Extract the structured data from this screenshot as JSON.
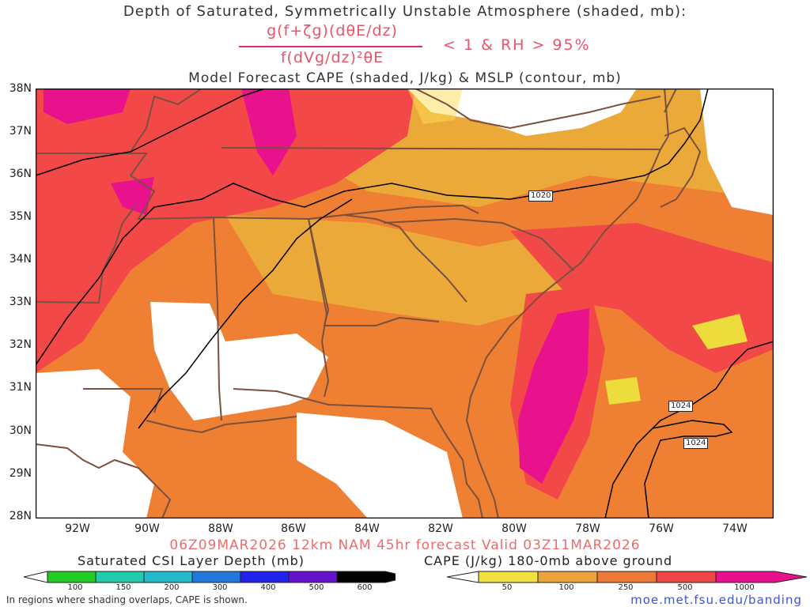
{
  "title_line1": "Depth of Saturated, Symmetrically Unstable Atmosphere (shaded, mb):",
  "formula": {
    "numerator": "g(f+ζg)(dθE/dz)",
    "denominator": "f(dVg/dz)²θE",
    "condition": "< 1 & RH > 95%"
  },
  "title_line3": "Model Forecast CAPE (shaded, J/kg) & MSLP (contour, mb)",
  "lat_labels": [
    "38N",
    "37N",
    "36N",
    "35N",
    "34N",
    "33N",
    "32N",
    "31N",
    "30N",
    "29N",
    "28N"
  ],
  "lon_labels": [
    "92W",
    "90W",
    "88W",
    "86W",
    "84W",
    "82W",
    "80W",
    "78W",
    "76W",
    "74W"
  ],
  "contour_labels": [
    "1020",
    "1024",
    "1024"
  ],
  "run_info": "06Z09MAR2026 12km NAM 45hr forecast Valid 03Z11MAR2026",
  "legend_csi": {
    "label": "Saturated CSI Layer Depth (mb)",
    "ticks": [
      "100",
      "150",
      "200",
      "300",
      "400",
      "500",
      "600"
    ],
    "colors": [
      "#22cc22",
      "#22ccaa",
      "#22bbcc",
      "#2277dd",
      "#2222ee",
      "#6611cc",
      "#000000"
    ]
  },
  "legend_cape": {
    "label": "CAPE (J/kg) 180-0mb above ground",
    "ticks": [
      "50",
      "100",
      "250",
      "500",
      "1000"
    ],
    "colors": [
      "#f0e040",
      "#eba43a",
      "#ec7a36",
      "#f04545",
      "#e8108c"
    ]
  },
  "footnote": "In regions where shading overlaps, CAPE is shown.",
  "url": "moe.met.fsu.edu/banding",
  "colors": {
    "cape_yellow": "#ecdc3c",
    "cape_light_orange": "#eba93a",
    "cape_orange": "#ef8033",
    "cape_red": "#f24848",
    "cape_magenta": "#e8128c",
    "border": "#7a5040",
    "contour": "#000000"
  }
}
